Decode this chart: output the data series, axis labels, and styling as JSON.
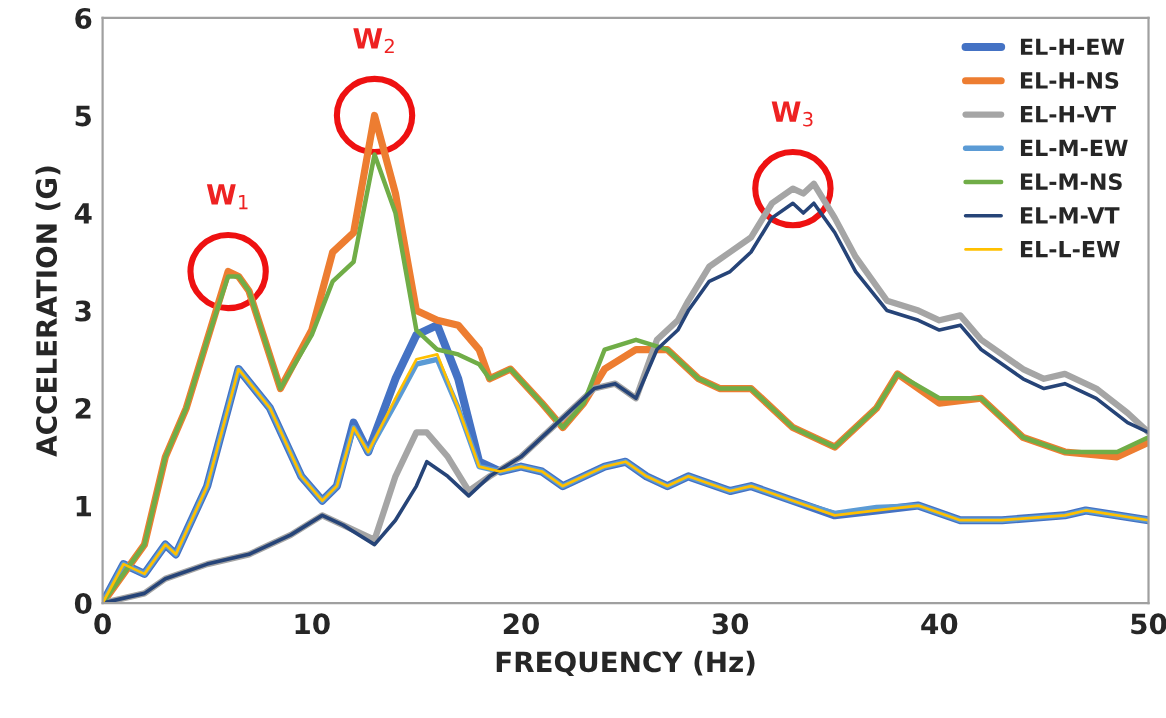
{
  "chart_data": {
    "type": "line",
    "xlabel": "FREQUENCY (Hz)",
    "ylabel": "ACCELERATION (G)",
    "xlim": [
      0,
      50
    ],
    "xticks": [
      0,
      10,
      20,
      30,
      40,
      50
    ],
    "ylim": [
      0,
      6
    ],
    "yticks": [
      0,
      1,
      2,
      3,
      4,
      5,
      6
    ],
    "grid": false,
    "legend": "top right",
    "marker": "none",
    "line_style": "solid",
    "series": [
      {
        "name": "EL-H-EW",
        "color": "#4472c4",
        "x": [
          0,
          1,
          2,
          3,
          3.5,
          5,
          6.5,
          8,
          9.5,
          10.5,
          11.2,
          12,
          12.7,
          14,
          15,
          16,
          17,
          18,
          19,
          20,
          21,
          22,
          23,
          24,
          25,
          26,
          27,
          28,
          30,
          31,
          33,
          35,
          37,
          39,
          41,
          43,
          46,
          47,
          50
        ],
        "values": [
          0,
          0.4,
          0.3,
          0.6,
          0.5,
          1.2,
          2.4,
          2.0,
          1.3,
          1.05,
          1.2,
          1.85,
          1.55,
          2.3,
          2.75,
          2.85,
          2.3,
          1.45,
          1.35,
          1.4,
          1.35,
          1.2,
          1.3,
          1.4,
          1.45,
          1.3,
          1.2,
          1.3,
          1.15,
          1.2,
          1.05,
          0.9,
          0.95,
          1.0,
          0.85,
          0.85,
          0.9,
          0.95,
          0.85
        ]
      },
      {
        "name": "EL-H-NS",
        "color": "#ed7d31",
        "x": [
          0,
          1,
          2,
          3,
          4,
          5,
          6,
          6.5,
          7,
          8.5,
          10,
          11,
          12,
          13,
          14,
          15,
          16,
          17,
          18,
          18.5,
          19.5,
          21,
          22,
          23,
          24,
          25.5,
          27,
          28.5,
          29.5,
          31,
          33,
          35,
          37,
          38,
          40,
          42,
          44,
          46,
          48.5,
          50
        ],
        "values": [
          0,
          0.3,
          0.6,
          1.5,
          2.0,
          2.7,
          3.4,
          3.35,
          3.2,
          2.2,
          2.8,
          3.6,
          3.8,
          5.0,
          4.2,
          3.0,
          2.9,
          2.85,
          2.6,
          2.3,
          2.4,
          2.05,
          1.8,
          2.05,
          2.4,
          2.6,
          2.6,
          2.3,
          2.2,
          2.2,
          1.8,
          1.6,
          2.0,
          2.35,
          2.05,
          2.1,
          1.7,
          1.55,
          1.5,
          1.65
        ]
      },
      {
        "name": "EL-H-VT",
        "color": "#a5a5a5",
        "x": [
          0,
          2,
          3,
          5,
          7,
          9,
          10.5,
          11.5,
          13,
          14,
          15,
          15.5,
          16.5,
          17.5,
          18.5,
          20,
          21,
          22,
          23.5,
          24.5,
          25.5,
          26.5,
          27.5,
          28,
          29,
          30,
          31,
          32,
          33,
          33.5,
          34,
          35,
          36,
          37.5,
          39,
          40,
          41,
          42,
          44,
          45,
          46,
          47.5,
          49,
          50
        ],
        "values": [
          0,
          0.1,
          0.25,
          0.4,
          0.5,
          0.7,
          0.9,
          0.8,
          0.65,
          1.3,
          1.75,
          1.75,
          1.5,
          1.15,
          1.3,
          1.5,
          1.7,
          1.9,
          2.2,
          2.25,
          2.1,
          2.7,
          2.9,
          3.1,
          3.45,
          3.6,
          3.75,
          4.1,
          4.25,
          4.2,
          4.3,
          3.95,
          3.55,
          3.1,
          3.0,
          2.9,
          2.95,
          2.7,
          2.4,
          2.3,
          2.35,
          2.2,
          1.95,
          1.75
        ]
      },
      {
        "name": "EL-M-EW",
        "color": "#5b9bd5",
        "x": [
          0,
          1,
          2,
          3,
          3.5,
          5,
          6.5,
          8,
          9.5,
          10.5,
          11.2,
          12,
          12.7,
          14,
          15,
          16,
          17,
          18,
          19,
          20,
          21,
          22,
          23,
          24,
          25,
          26,
          27,
          28,
          30,
          31,
          33,
          35,
          37,
          39,
          41,
          43,
          46,
          47,
          50
        ],
        "values": [
          0,
          0.4,
          0.3,
          0.6,
          0.5,
          1.2,
          2.4,
          2.0,
          1.3,
          1.05,
          1.2,
          1.8,
          1.55,
          2.05,
          2.45,
          2.5,
          2.0,
          1.4,
          1.35,
          1.4,
          1.35,
          1.2,
          1.3,
          1.4,
          1.45,
          1.3,
          1.2,
          1.3,
          1.15,
          1.2,
          1.05,
          0.92,
          0.98,
          1.0,
          0.85,
          0.85,
          0.9,
          0.95,
          0.85
        ]
      },
      {
        "name": "EL-M-NS",
        "color": "#70ad47",
        "x": [
          0,
          1,
          2,
          3,
          4,
          5,
          6,
          6.5,
          7,
          8.5,
          10,
          11,
          12,
          13,
          14,
          15,
          16,
          17,
          18,
          18.5,
          19.5,
          21,
          22,
          23,
          24,
          25.5,
          27,
          28.5,
          29.5,
          31,
          33,
          35,
          37,
          38,
          40,
          42,
          44,
          46,
          48.5,
          50
        ],
        "values": [
          0,
          0.3,
          0.6,
          1.5,
          2.0,
          2.7,
          3.35,
          3.35,
          3.2,
          2.2,
          2.75,
          3.3,
          3.5,
          4.6,
          4.0,
          2.8,
          2.6,
          2.55,
          2.45,
          2.3,
          2.4,
          2.05,
          1.8,
          2.05,
          2.6,
          2.7,
          2.6,
          2.3,
          2.2,
          2.2,
          1.8,
          1.6,
          2.0,
          2.35,
          2.1,
          2.1,
          1.7,
          1.55,
          1.55,
          1.7
        ]
      },
      {
        "name": "EL-M-VT",
        "color": "#264478",
        "x": [
          0,
          2,
          3,
          5,
          7,
          9,
          10.5,
          11.5,
          13,
          14,
          15,
          15.5,
          16.5,
          17.5,
          18.5,
          20,
          21,
          22,
          23.5,
          24.5,
          25.5,
          26.5,
          27.5,
          28,
          29,
          30,
          31,
          32,
          33,
          33.5,
          34,
          35,
          36,
          37.5,
          39,
          40,
          41,
          42,
          44,
          45,
          46,
          47.5,
          49,
          50
        ],
        "values": [
          0,
          0.1,
          0.25,
          0.4,
          0.5,
          0.7,
          0.9,
          0.8,
          0.6,
          0.85,
          1.2,
          1.45,
          1.3,
          1.1,
          1.3,
          1.5,
          1.7,
          1.9,
          2.2,
          2.25,
          2.1,
          2.6,
          2.8,
          3.0,
          3.3,
          3.4,
          3.6,
          3.95,
          4.1,
          4.0,
          4.1,
          3.8,
          3.4,
          3.0,
          2.9,
          2.8,
          2.85,
          2.6,
          2.3,
          2.2,
          2.25,
          2.1,
          1.85,
          1.75
        ]
      },
      {
        "name": "EL-L-EW",
        "color": "#ffc000",
        "x": [
          0,
          1,
          2,
          3,
          3.5,
          5,
          6.5,
          8,
          9.5,
          10.5,
          11.2,
          12,
          12.7,
          14,
          15,
          16,
          17,
          18,
          19,
          20,
          21,
          22,
          23,
          24,
          25,
          26,
          27,
          28,
          30,
          31,
          33,
          35,
          37,
          39,
          41,
          43,
          46,
          47,
          50
        ],
        "values": [
          0,
          0.4,
          0.3,
          0.6,
          0.5,
          1.2,
          2.4,
          2.0,
          1.3,
          1.05,
          1.2,
          1.8,
          1.55,
          2.1,
          2.5,
          2.55,
          2.0,
          1.4,
          1.35,
          1.4,
          1.35,
          1.2,
          1.3,
          1.4,
          1.45,
          1.3,
          1.2,
          1.3,
          1.15,
          1.2,
          1.05,
          0.9,
          0.95,
          1.0,
          0.85,
          0.85,
          0.9,
          0.95,
          0.85
        ]
      }
    ],
    "annotations": [
      {
        "text": "W$_{1}$",
        "x": 6,
        "y": 3.4
      },
      {
        "text": "W$_{2}$",
        "x": 13,
        "y": 5.0
      },
      {
        "text": "W$_{3}$",
        "x": 33,
        "y": 4.25
      }
    ]
  }
}
